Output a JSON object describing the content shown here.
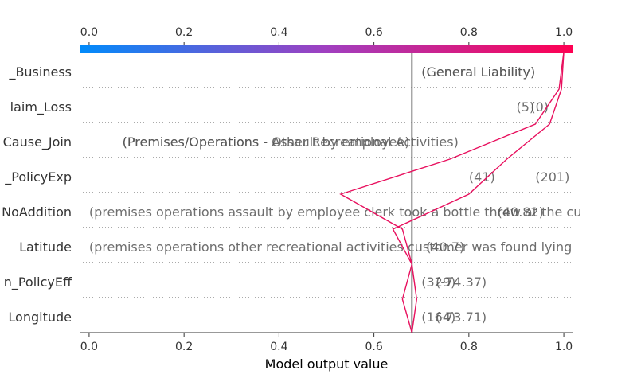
{
  "chart_data": {
    "type": "line",
    "title": "",
    "xlabel": "Model output value",
    "ylabel": "",
    "xlim": [
      -0.02,
      1.02
    ],
    "x_ticks": [
      "0.0",
      "0.2",
      "0.4",
      "0.6",
      "0.8",
      "1.0"
    ],
    "x_tick_values": [
      0,
      0.2,
      0.4,
      0.6,
      0.8,
      1.0
    ],
    "base_value": 0.68,
    "colorbar": {
      "from": "#008bfb",
      "mid": "#a03fc0",
      "to": "#ff0052"
    },
    "line_color": "#e8105e",
    "features": [
      "_Business",
      "laim_Loss",
      "Cause_Join",
      "_PolicyExp",
      "NoAddition",
      "Latitude",
      "n_PolicyEff",
      "Longitude"
    ],
    "series": [
      {
        "values": [
          1.0,
          0.995,
          0.97,
          0.88,
          0.8,
          0.64,
          0.68,
          0.69,
          0.68
        ]
      },
      {
        "values": [
          1.0,
          0.99,
          0.94,
          0.76,
          0.53,
          0.66,
          0.68,
          0.66,
          0.68
        ]
      }
    ],
    "annotations": [
      {
        "row": 0,
        "x": 0.7,
        "text": "(General Liability)"
      },
      {
        "row": 0,
        "x": 0.7,
        "text": "(General Liability)"
      },
      {
        "row": 1,
        "x": 0.9,
        "text": "(5)"
      },
      {
        "row": 1,
        "x": 0.93,
        "text": "(0)"
      },
      {
        "row": 2,
        "x": 0.07,
        "text": "(Premises/Operations - Assault by employee)"
      },
      {
        "row": 2,
        "x": 0.07,
        "text": "(Premises/Operations - Other Recreational Activities)"
      },
      {
        "row": 3,
        "x": 0.8,
        "text": "(41)"
      },
      {
        "row": 3,
        "x": 0.94,
        "text": "(201)"
      },
      {
        "row": 4,
        "x": 0.0,
        "text": "(premises operations   assault by employee  clerk took a bottle threw at the cu"
      },
      {
        "row": 4,
        "x": 0.86,
        "text": "(40.82)"
      },
      {
        "row": 5,
        "x": 0.0,
        "text": "(premises operations   other recreational activities   customer was found lying"
      },
      {
        "row": 5,
        "x": 0.71,
        "text": "(40.7)"
      },
      {
        "row": 6,
        "x": 0.7,
        "text": "(329)"
      },
      {
        "row": 6,
        "x": 0.73,
        "text": "(-74.37)"
      },
      {
        "row": 7,
        "x": 0.7,
        "text": "(164)"
      },
      {
        "row": 7,
        "x": 0.73,
        "text": "(-73.71)"
      }
    ]
  }
}
